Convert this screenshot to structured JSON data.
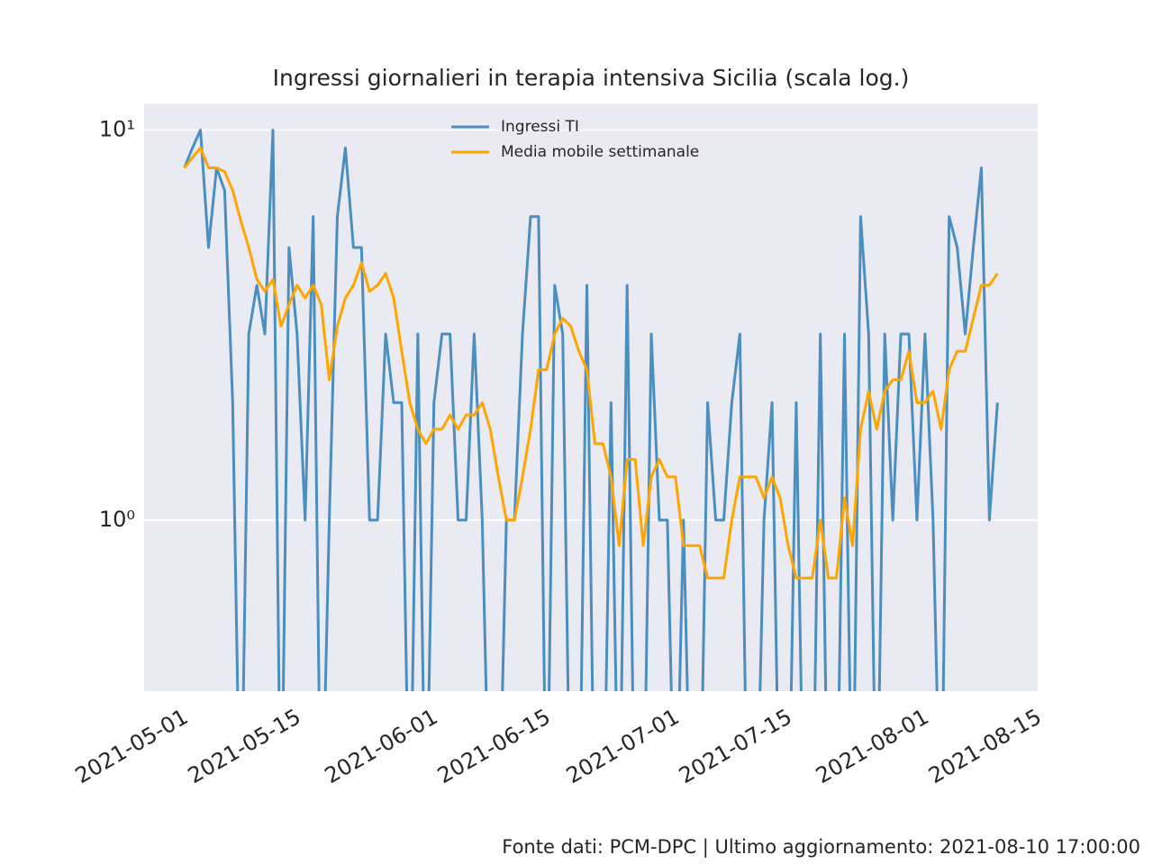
{
  "chart_data": {
    "type": "line",
    "title": "Ingressi giornalieri in terapia intensiva Sicilia (scala log.)",
    "footer": "Fonte dati: PCM-DPC | Ultimo aggiornamento: 2021-08-10 17:00:00",
    "x": [
      "2021-05-02",
      "2021-05-03",
      "2021-05-04",
      "2021-05-05",
      "2021-05-06",
      "2021-05-07",
      "2021-05-08",
      "2021-05-09",
      "2021-05-10",
      "2021-05-11",
      "2021-05-12",
      "2021-05-13",
      "2021-05-14",
      "2021-05-15",
      "2021-05-16",
      "2021-05-17",
      "2021-05-18",
      "2021-05-19",
      "2021-05-20",
      "2021-05-21",
      "2021-05-22",
      "2021-05-23",
      "2021-05-24",
      "2021-05-25",
      "2021-05-26",
      "2021-05-27",
      "2021-05-28",
      "2021-05-29",
      "2021-05-30",
      "2021-05-31",
      "2021-06-01",
      "2021-06-02",
      "2021-06-03",
      "2021-06-04",
      "2021-06-05",
      "2021-06-06",
      "2021-06-07",
      "2021-06-08",
      "2021-06-09",
      "2021-06-10",
      "2021-06-11",
      "2021-06-12",
      "2021-06-13",
      "2021-06-14",
      "2021-06-15",
      "2021-06-16",
      "2021-06-17",
      "2021-06-18",
      "2021-06-19",
      "2021-06-20",
      "2021-06-21",
      "2021-06-22",
      "2021-06-23",
      "2021-06-24",
      "2021-06-25",
      "2021-06-26",
      "2021-06-27",
      "2021-06-28",
      "2021-06-29",
      "2021-06-30",
      "2021-07-01",
      "2021-07-02",
      "2021-07-03",
      "2021-07-04",
      "2021-07-05",
      "2021-07-06",
      "2021-07-07",
      "2021-07-08",
      "2021-07-09",
      "2021-07-10",
      "2021-07-11",
      "2021-07-12",
      "2021-07-13",
      "2021-07-14",
      "2021-07-15",
      "2021-07-16",
      "2021-07-17",
      "2021-07-18",
      "2021-07-19",
      "2021-07-20",
      "2021-07-21",
      "2021-07-22",
      "2021-07-23",
      "2021-07-24",
      "2021-07-25",
      "2021-07-26",
      "2021-07-27",
      "2021-07-28",
      "2021-07-29",
      "2021-07-30",
      "2021-07-31",
      "2021-08-01",
      "2021-08-02",
      "2021-08-03",
      "2021-08-04",
      "2021-08-05",
      "2021-08-06",
      "2021-08-07",
      "2021-08-08",
      "2021-08-09",
      "2021-08-10",
      "2021-08-11"
    ],
    "series": [
      {
        "name": "Ingressi TI",
        "color": "#4a8fc0",
        "values": [
          8,
          9,
          10,
          5,
          8,
          7,
          2,
          0,
          3,
          4,
          3,
          10,
          0,
          5,
          3,
          1,
          6,
          0,
          1,
          6,
          9,
          5,
          5,
          1,
          1,
          3,
          2,
          2,
          0,
          3,
          0,
          2,
          3,
          3,
          1,
          1,
          3,
          1,
          0,
          0,
          1,
          1,
          3,
          6,
          6,
          0,
          4,
          3,
          0,
          0,
          4,
          0,
          0,
          2,
          0,
          4,
          0,
          0,
          3,
          1,
          1,
          0,
          1,
          0,
          0,
          2,
          1,
          1,
          2,
          3,
          0,
          0,
          1,
          2,
          0,
          0,
          2,
          0,
          0,
          3,
          0,
          0,
          3,
          0,
          6,
          3,
          0,
          3,
          1,
          3,
          3,
          1,
          3,
          1,
          0,
          6,
          5,
          3,
          5,
          8,
          1,
          2
        ]
      },
      {
        "name": "Media mobile settimanale",
        "color": "#ffa500",
        "values": [
          8,
          8.5,
          9,
          8,
          8,
          7.83,
          7,
          5.86,
          5,
          4.14,
          3.86,
          4.14,
          3.14,
          3.57,
          4,
          3.71,
          4,
          3.57,
          2.29,
          3.14,
          3.71,
          4,
          4.57,
          3.86,
          4,
          4.29,
          3.71,
          2.71,
          2,
          1.71,
          1.57,
          1.71,
          1.71,
          1.86,
          1.71,
          1.86,
          1.86,
          2,
          1.71,
          1.29,
          1,
          1,
          1.29,
          1.71,
          2.43,
          2.43,
          3,
          3.29,
          3.14,
          2.71,
          2.43,
          1.57,
          1.57,
          1.29,
          0.86,
          1.43,
          1.43,
          0.86,
          1.29,
          1.43,
          1.29,
          1.29,
          0.86,
          0.86,
          0.86,
          0.71,
          0.71,
          0.71,
          1,
          1.29,
          1.29,
          1.29,
          1.14,
          1.29,
          1.14,
          0.86,
          0.71,
          0.71,
          0.71,
          1,
          0.71,
          0.71,
          1.14,
          0.86,
          1.71,
          2.14,
          1.71,
          2.14,
          2.29,
          2.29,
          2.71,
          2,
          2,
          2.14,
          1.71,
          2.43,
          2.71,
          2.71,
          3.29,
          4,
          4,
          4.29
        ]
      }
    ],
    "xlim": [
      "2021-04-27",
      "2021-08-16"
    ],
    "xticks": [
      "2021-05-01",
      "2021-05-15",
      "2021-06-01",
      "2021-06-15",
      "2021-07-01",
      "2021-07-15",
      "2021-08-01",
      "2021-08-15"
    ],
    "ylim": [
      0.364,
      11.7
    ],
    "yticks": [
      {
        "value": 1,
        "label": "10⁰"
      },
      {
        "value": 10,
        "label": "10¹"
      }
    ],
    "log_scale": true,
    "grid": true,
    "legend": "upper center"
  }
}
